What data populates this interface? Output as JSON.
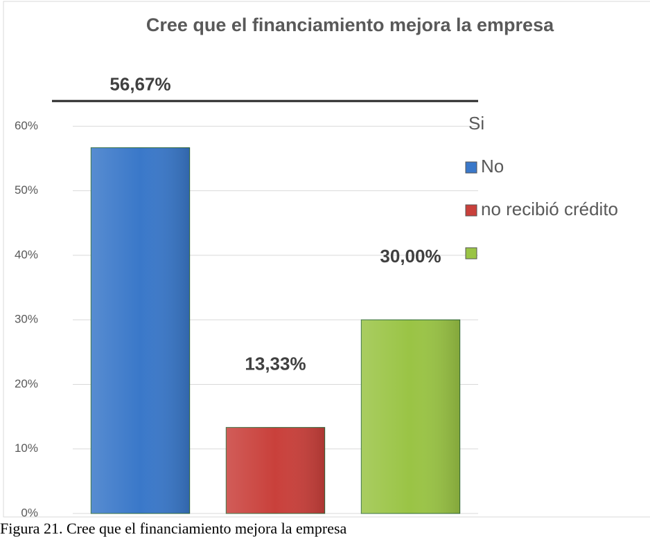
{
  "chart_data": {
    "type": "bar",
    "title": "Cree que el financiamiento mejora la empresa",
    "categories": [
      null,
      null,
      null
    ],
    "values": [
      56.67,
      13.33,
      30.0
    ],
    "value_labels": [
      "56,67%",
      "13,33%",
      "30,00%"
    ],
    "colors": [
      "#3a78c9",
      "#c9403b",
      "#9ac445"
    ],
    "ylim": [
      0,
      64
    ],
    "yticks": [
      {
        "value": 0,
        "label": "0%"
      },
      {
        "value": 10,
        "label": "10%"
      },
      {
        "value": 20,
        "label": "20%"
      },
      {
        "value": 30,
        "label": "30%"
      },
      {
        "value": 40,
        "label": "40%"
      },
      {
        "value": 50,
        "label": "50%"
      },
      {
        "value": 60,
        "label": "60%"
      }
    ],
    "grid": true,
    "legend": [
      "Si",
      "No",
      "no recibió crédito"
    ],
    "caption": "Figura 21. Cree que el financiamiento mejora la empresa"
  }
}
